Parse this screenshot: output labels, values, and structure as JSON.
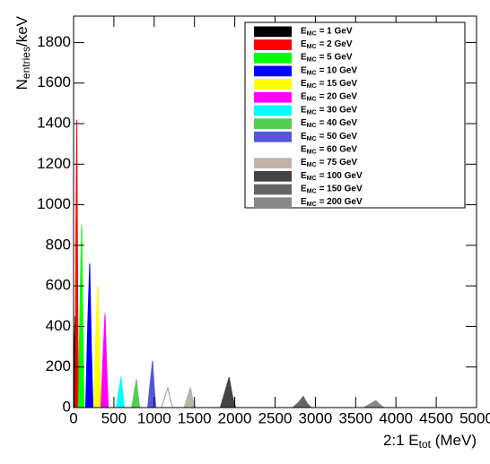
{
  "chart_data": {
    "type": "area",
    "ylabel": {
      "base": "N",
      "sub": "entries",
      "rest": "/keV"
    },
    "xlabel": {
      "base": "2:1 E",
      "sub": "tot",
      "rest": " (MeV)"
    },
    "legend_symbol": {
      "base": "E",
      "sub": "MC"
    },
    "xlim": [
      0,
      5000
    ],
    "xticks": [
      0,
      500,
      1000,
      1500,
      2000,
      2500,
      3000,
      3500,
      4000,
      4500,
      5000
    ],
    "ylim": [
      0,
      1930
    ],
    "yticks": [
      0,
      200,
      400,
      600,
      800,
      1000,
      1200,
      1400,
      1600,
      1800
    ],
    "legend": "upper right",
    "series": [
      {
        "name": "= 1 GeV",
        "color": "#000000",
        "x": [
          0,
          10,
          20,
          30,
          40
        ],
        "values": [
          0,
          300,
          450,
          150,
          0
        ]
      },
      {
        "name": "= 2 GeV",
        "color": "#ff0000",
        "x": [
          20,
          30,
          40,
          50,
          60
        ],
        "values": [
          0,
          900,
          1420,
          600,
          0
        ]
      },
      {
        "name": "= 5 GeV",
        "color": "#00ff00",
        "x": [
          60,
          80,
          100,
          115,
          130
        ],
        "values": [
          0,
          500,
          900,
          400,
          0
        ]
      },
      {
        "name": "= 10 GeV",
        "color": "#0000ff",
        "x": [
          150,
          175,
          200,
          220,
          240
        ],
        "values": [
          0,
          400,
          710,
          300,
          0
        ]
      },
      {
        "name": "= 15 GeV",
        "color": "#ffff00",
        "x": [
          250,
          275,
          300,
          320,
          340
        ],
        "values": [
          0,
          350,
          600,
          250,
          0
        ]
      },
      {
        "name": "= 20 GeV",
        "color": "#ff00ff",
        "x": [
          340,
          365,
          390,
          410,
          430
        ],
        "values": [
          0,
          250,
          460,
          200,
          0
        ]
      },
      {
        "name": "= 30 GeV",
        "color": "#00ffff",
        "x": [
          530,
          560,
          590,
          610,
          630
        ],
        "values": [
          0,
          80,
          150,
          70,
          0
        ]
      },
      {
        "name": "= 40 GeV",
        "color": "#55cc55",
        "x": [
          720,
          750,
          780,
          800,
          820
        ],
        "values": [
          0,
          70,
          140,
          60,
          0
        ]
      },
      {
        "name": "= 50 GeV",
        "color": "#5555dd",
        "x": [
          920,
          950,
          980,
          1000,
          1020
        ],
        "values": [
          0,
          120,
          230,
          100,
          0
        ]
      },
      {
        "name": "= 60 GeV",
        "color": "#ffffff",
        "line_color": "#999999",
        "x": [
          1090,
          1130,
          1170,
          1200,
          1230
        ],
        "values": [
          0,
          50,
          100,
          40,
          0
        ]
      },
      {
        "name": "= 75 GeV",
        "color": "#c0b4a8",
        "x": [
          1370,
          1410,
          1450,
          1480,
          1510
        ],
        "values": [
          0,
          50,
          100,
          40,
          0
        ]
      },
      {
        "name": "= 100 GeV",
        "color": "#444444",
        "x": [
          1820,
          1880,
          1930,
          1970,
          2010
        ],
        "values": [
          0,
          80,
          150,
          60,
          0
        ]
      },
      {
        "name": "= 150 GeV",
        "color": "#666666",
        "x": [
          2720,
          2790,
          2850,
          2900,
          2950
        ],
        "values": [
          0,
          25,
          55,
          20,
          0
        ]
      },
      {
        "name": "= 200 GeV",
        "color": "#888888",
        "x": [
          3600,
          3680,
          3750,
          3800,
          3850
        ],
        "values": [
          0,
          18,
          35,
          15,
          0
        ]
      }
    ]
  }
}
